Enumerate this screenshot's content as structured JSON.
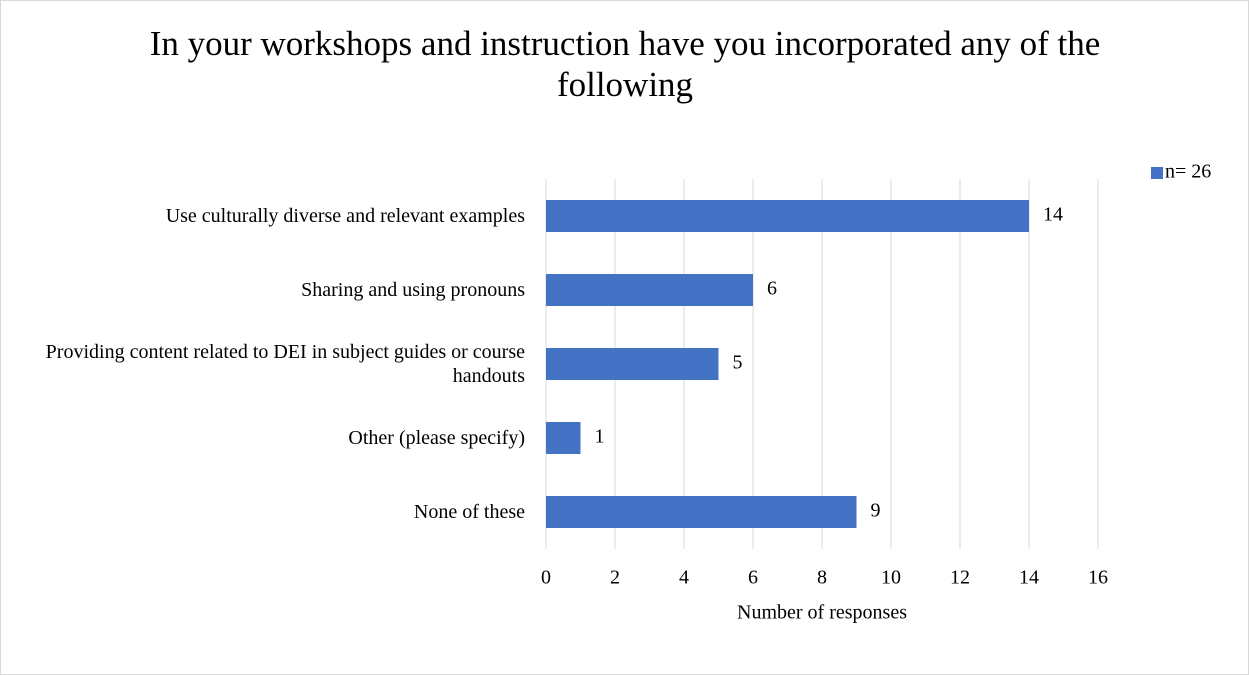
{
  "chart_data": {
    "type": "bar",
    "orientation": "horizontal",
    "title": "In your workshops and instruction have you incorporated any of the following",
    "xlabel": "Number of responses",
    "categories": [
      "Use culturally diverse and relevant examples",
      "Sharing and using pronouns",
      "Providing content related to DEI in subject guides or course handouts",
      "Other (please specify)",
      "None of these"
    ],
    "series": [
      {
        "name": "n= 26",
        "color": "#4472c4",
        "values": [
          14,
          6,
          5,
          1,
          9
        ]
      }
    ],
    "xlim": [
      0,
      16
    ],
    "xticks": [
      0,
      2,
      4,
      6,
      8,
      10,
      12,
      14,
      16
    ],
    "grid": true,
    "legend": "top-right"
  }
}
